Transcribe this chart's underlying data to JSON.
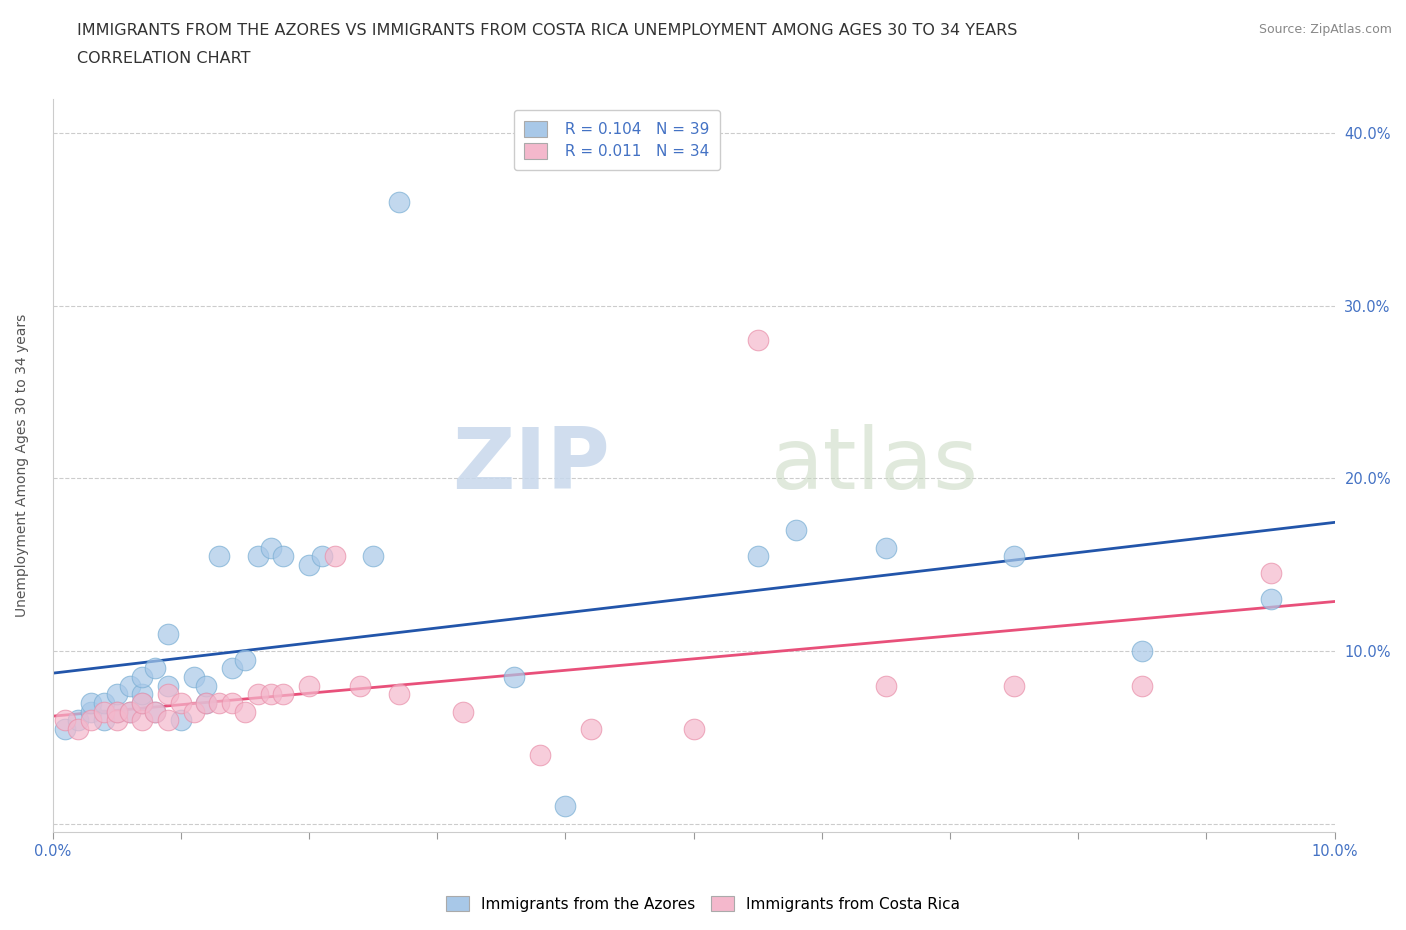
{
  "title_line1": "IMMIGRANTS FROM THE AZORES VS IMMIGRANTS FROM COSTA RICA UNEMPLOYMENT AMONG AGES 30 TO 34 YEARS",
  "title_line2": "CORRELATION CHART",
  "source_text": "Source: ZipAtlas.com",
  "ylabel": "Unemployment Among Ages 30 to 34 years",
  "watermark_zip": "ZIP",
  "watermark_atlas": "atlas",
  "azores_R": 0.104,
  "azores_N": 39,
  "costarica_R": 0.011,
  "costarica_N": 34,
  "azores_color": "#a8c8e8",
  "costarica_color": "#f4b8cc",
  "azores_edge_color": "#7bafd4",
  "costarica_edge_color": "#e990aa",
  "azores_line_color": "#2255aa",
  "costarica_line_color": "#e8507a",
  "background_color": "#ffffff",
  "xlim": [
    0.0,
    0.1
  ],
  "ylim": [
    -0.005,
    0.42
  ],
  "azores_x": [
    0.001,
    0.002,
    0.003,
    0.003,
    0.004,
    0.004,
    0.005,
    0.005,
    0.006,
    0.006,
    0.007,
    0.007,
    0.007,
    0.008,
    0.008,
    0.009,
    0.009,
    0.01,
    0.011,
    0.012,
    0.012,
    0.013,
    0.014,
    0.015,
    0.016,
    0.017,
    0.018,
    0.02,
    0.021,
    0.025,
    0.027,
    0.036,
    0.04,
    0.055,
    0.058,
    0.065,
    0.075,
    0.085,
    0.095
  ],
  "azores_y": [
    0.055,
    0.06,
    0.065,
    0.07,
    0.06,
    0.07,
    0.065,
    0.075,
    0.065,
    0.08,
    0.07,
    0.075,
    0.085,
    0.065,
    0.09,
    0.08,
    0.11,
    0.06,
    0.085,
    0.07,
    0.08,
    0.155,
    0.09,
    0.095,
    0.155,
    0.16,
    0.155,
    0.15,
    0.155,
    0.155,
    0.36,
    0.085,
    0.01,
    0.155,
    0.17,
    0.16,
    0.155,
    0.1,
    0.13
  ],
  "costarica_x": [
    0.001,
    0.002,
    0.003,
    0.004,
    0.005,
    0.005,
    0.006,
    0.007,
    0.007,
    0.008,
    0.009,
    0.009,
    0.01,
    0.011,
    0.012,
    0.013,
    0.014,
    0.015,
    0.016,
    0.017,
    0.018,
    0.02,
    0.022,
    0.024,
    0.027,
    0.032,
    0.038,
    0.042,
    0.05,
    0.055,
    0.065,
    0.075,
    0.085,
    0.095
  ],
  "costarica_y": [
    0.06,
    0.055,
    0.06,
    0.065,
    0.06,
    0.065,
    0.065,
    0.06,
    0.07,
    0.065,
    0.06,
    0.075,
    0.07,
    0.065,
    0.07,
    0.07,
    0.07,
    0.065,
    0.075,
    0.075,
    0.075,
    0.08,
    0.155,
    0.08,
    0.075,
    0.065,
    0.04,
    0.055,
    0.055,
    0.28,
    0.08,
    0.08,
    0.08,
    0.145
  ],
  "legend_label_azores": "Immigrants from the Azores",
  "legend_label_costarica": "Immigrants from Costa Rica",
  "title_fontsize": 11.5,
  "axis_label_fontsize": 10,
  "tick_fontsize": 10.5,
  "legend_fontsize": 11
}
